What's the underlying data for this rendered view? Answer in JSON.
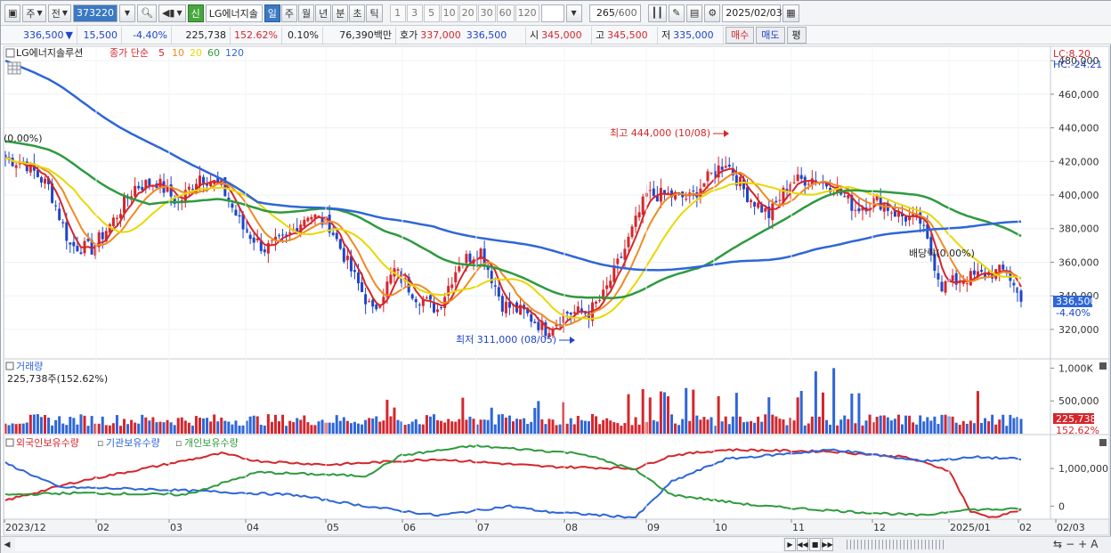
{
  "toolbar": {
    "period_label": "주",
    "prev_label": "전",
    "code": "373220",
    "credit_badge": "신",
    "stock_name": "LG에너지솔",
    "periods": [
      "일",
      "주",
      "월",
      "년",
      "분",
      "초",
      "틱"
    ],
    "selected_period": "일",
    "intervals": [
      "1",
      "3",
      "5",
      "10",
      "20",
      "30",
      "60",
      "120"
    ],
    "count_value": "265",
    "count_total": "/600",
    "date": "2025/02/03"
  },
  "quote": {
    "price": "336,500",
    "change": "15,500",
    "change_pct": "-4.40%",
    "volume": "225,738",
    "volume_ratio": "152.62%",
    "turnover": "0.10%",
    "amount": "76,390백만",
    "bid_label": "호가",
    "bid_value": "337,000",
    "ask_value": "336,500",
    "open_label": "시",
    "open_value": "345,000",
    "high_label": "고",
    "high_value": "345,500",
    "low_label": "저",
    "low_value": "335,000",
    "buy_label": "매수",
    "sell_label": "매도",
    "extra_label": "평"
  },
  "price_panel": {
    "title": "LG에너지솔루션",
    "ma_label": "종가 단순",
    "ma_periods": [
      {
        "label": "5",
        "color": "#d4262c"
      },
      {
        "label": "10",
        "color": "#f08a24"
      },
      {
        "label": "20",
        "color": "#e8d800"
      },
      {
        "label": "60",
        "color": "#2e9a3e"
      },
      {
        "label": "120",
        "color": "#2e66d8"
      }
    ],
    "lc_label": "LC:8.20",
    "hc_label": "HC:-24.21",
    "start_pct_label": "(0.00%)",
    "high_annotation": "최고 444,000 (10/08)",
    "low_annotation": "최저 311,000 (08/05)",
    "dividend_label": "배당락(0.00%)",
    "current_price_tag": "336,500",
    "current_pct_tag": "-4.40%"
  },
  "volume_panel": {
    "title": "거래량",
    "value_label": "225,738주(152.62%)",
    "current_tag": "225,738",
    "current_pct_tag": "152.62%"
  },
  "holdings_panel": {
    "legend": [
      {
        "label": "외국인보유수량",
        "color": "#d4262c"
      },
      {
        "label": "기관보유수량",
        "color": "#2e66d8"
      },
      {
        "label": "개인보유수량",
        "color": "#2e9a3e"
      }
    ]
  },
  "x_axis_labels": [
    "2023/12",
    "02",
    "03",
    "04",
    "05",
    "06",
    "07",
    "08",
    "09",
    "10",
    "11",
    "12",
    "2025/01",
    "02",
    "02/03"
  ],
  "chart_data": {
    "type": "candlestick",
    "price_axis_ticks": [
      "480,000",
      "460,000",
      "440,000",
      "420,000",
      "400,000",
      "380,000",
      "360,000",
      "340,000",
      "320,000"
    ],
    "price_ylim": [
      303000,
      488000
    ],
    "price_anchors": [
      [
        0,
        422000
      ],
      [
        6,
        418000
      ],
      [
        12,
        405000
      ],
      [
        18,
        370000
      ],
      [
        24,
        368000
      ],
      [
        30,
        385000
      ],
      [
        36,
        405000
      ],
      [
        42,
        408000
      ],
      [
        48,
        395000
      ],
      [
        54,
        412000
      ],
      [
        60,
        405000
      ],
      [
        66,
        380000
      ],
      [
        72,
        368000
      ],
      [
        78,
        374000
      ],
      [
        84,
        389000
      ],
      [
        90,
        382000
      ],
      [
        96,
        355000
      ],
      [
        102,
        330000
      ],
      [
        108,
        355000
      ],
      [
        114,
        340000
      ],
      [
        120,
        332000
      ],
      [
        126,
        360000
      ],
      [
        132,
        367000
      ],
      [
        138,
        335000
      ],
      [
        144,
        330000
      ],
      [
        150,
        320000
      ],
      [
        156,
        330000
      ],
      [
        162,
        330000
      ],
      [
        166,
        340000
      ],
      [
        172,
        368000
      ],
      [
        178,
        400000
      ],
      [
        184,
        400000
      ],
      [
        190,
        398000
      ],
      [
        196,
        412000
      ],
      [
        200,
        420000
      ],
      [
        206,
        400000
      ],
      [
        212,
        388000
      ],
      [
        218,
        408000
      ],
      [
        224,
        410000
      ],
      [
        230,
        405000
      ],
      [
        236,
        392000
      ],
      [
        242,
        397000
      ],
      [
        248,
        388000
      ],
      [
        254,
        384000
      ],
      [
        260,
        346000
      ],
      [
        266,
        350000
      ],
      [
        272,
        353000
      ],
      [
        278,
        355000
      ],
      [
        282,
        336500
      ]
    ],
    "volume_axis_ticks": [
      "1,000K",
      "500,000"
    ],
    "volume_ylim": [
      0,
      1100000
    ],
    "holdings_axis_ticks": [
      "1,000,000",
      "0"
    ]
  }
}
